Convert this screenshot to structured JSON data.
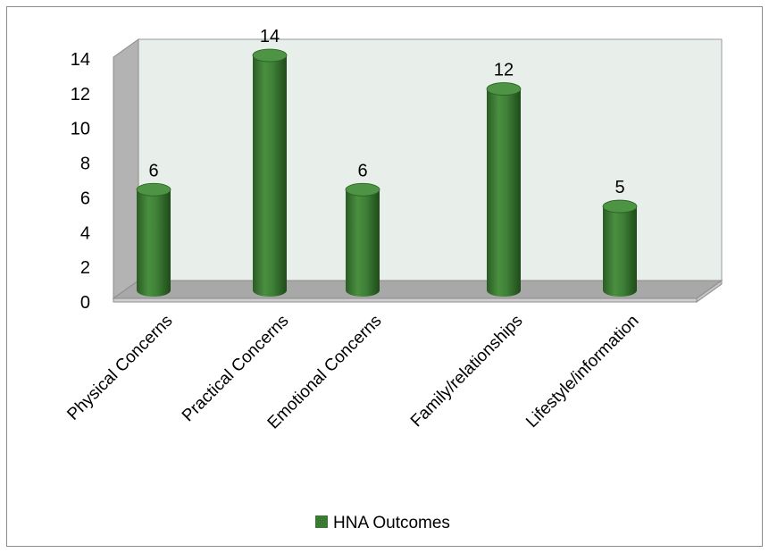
{
  "chart_data": {
    "type": "bar",
    "categories": [
      "Physical Concerns",
      "Practical Concerns",
      "Emotional Concerns",
      "Family/relationships",
      "Lifestyle/information"
    ],
    "series": [
      {
        "name": "HNA Outcomes",
        "values": [
          6,
          14,
          6,
          12,
          5
        ]
      }
    ],
    "data_labels": [
      "6",
      "14",
      "6",
      "12",
      "5"
    ],
    "y_ticks": [
      "0",
      "2",
      "4",
      "6",
      "8",
      "10",
      "12",
      "14"
    ],
    "ylim": [
      0,
      14
    ],
    "grid": false,
    "legend": "bottom",
    "three_d": true
  },
  "colors": {
    "bar_fill": "#3a7a32",
    "bar_top": "#4d9445",
    "back_wall": "#e8eee9",
    "side_wall": "#b3b3b3",
    "floor": "#a8a8a8",
    "border": "#8c8c8c"
  },
  "legend": {
    "label": "HNA Outcomes"
  }
}
